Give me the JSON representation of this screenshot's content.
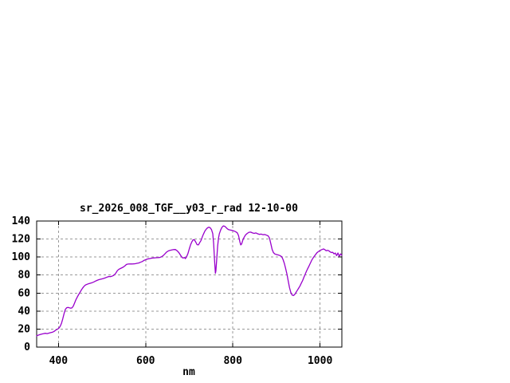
{
  "window": {
    "background": "#ffffff"
  },
  "chart_data": {
    "type": "line",
    "title": "sr_2026_008_TGF__y03_r_rad 12-10-00",
    "xlabel": "nm",
    "ylabel": "",
    "x_range": [
      350,
      1050
    ],
    "y_range": [
      0,
      140
    ],
    "x_ticks": [
      400,
      600,
      800,
      1000
    ],
    "y_ticks": [
      0,
      20,
      40,
      60,
      80,
      100,
      120,
      140
    ],
    "grid": true,
    "legend": "none",
    "line_color": "#9900cc",
    "grid_color": "#999999",
    "border_color": "#000000",
    "text_color": "#000000",
    "series": [
      {
        "name": "sr_2026_008_TGF__y03_r_rad",
        "points": [
          [
            350,
            12.5
          ],
          [
            355,
            13.5
          ],
          [
            358,
            14
          ],
          [
            362,
            14.5
          ],
          [
            366,
            15
          ],
          [
            370,
            15.3
          ],
          [
            374,
            15
          ],
          [
            378,
            15.5
          ],
          [
            382,
            16
          ],
          [
            386,
            16.5
          ],
          [
            390,
            17.5
          ],
          [
            394,
            19
          ],
          [
            398,
            20
          ],
          [
            401,
            21
          ],
          [
            404,
            23
          ],
          [
            407,
            26.5
          ],
          [
            410,
            31.5
          ],
          [
            413,
            37.5
          ],
          [
            416,
            42
          ],
          [
            419,
            43.8
          ],
          [
            422,
            44
          ],
          [
            425,
            43.6
          ],
          [
            428,
            43.2
          ],
          [
            431,
            43.5
          ],
          [
            434,
            45.5
          ],
          [
            437,
            49
          ],
          [
            440,
            52.5
          ],
          [
            443,
            55.5
          ],
          [
            446,
            58
          ],
          [
            449,
            60.5
          ],
          [
            452,
            63
          ],
          [
            455,
            65.3
          ],
          [
            458,
            67.2
          ],
          [
            461,
            68.6
          ],
          [
            464,
            69.5
          ],
          [
            468,
            70.2
          ],
          [
            472,
            70.8
          ],
          [
            476,
            71.3
          ],
          [
            480,
            72
          ],
          [
            484,
            73
          ],
          [
            488,
            74
          ],
          [
            492,
            74.8
          ],
          [
            496,
            75.3
          ],
          [
            500,
            75.8
          ],
          [
            504,
            76.3
          ],
          [
            508,
            77
          ],
          [
            512,
            77.8
          ],
          [
            516,
            78.4
          ],
          [
            519,
            78.2
          ],
          [
            522,
            78.6
          ],
          [
            526,
            79.5
          ],
          [
            529,
            80.5
          ],
          [
            532,
            82.5
          ],
          [
            535,
            84.8
          ],
          [
            538,
            86.2
          ],
          [
            542,
            87.3
          ],
          [
            546,
            88.2
          ],
          [
            550,
            89.2
          ],
          [
            553,
            90.5
          ],
          [
            556,
            91.8
          ],
          [
            560,
            92.2
          ],
          [
            564,
            92.3
          ],
          [
            568,
            92.3
          ],
          [
            572,
            92.4
          ],
          [
            576,
            92.6
          ],
          [
            580,
            93
          ],
          [
            584,
            93.4
          ],
          [
            588,
            94.2
          ],
          [
            592,
            95
          ],
          [
            596,
            96.2
          ],
          [
            600,
            97
          ],
          [
            604,
            97.8
          ],
          [
            608,
            98.2
          ],
          [
            612,
            98.6
          ],
          [
            616,
            98.9
          ],
          [
            620,
            99.1
          ],
          [
            624,
            99.2
          ],
          [
            628,
            99.3
          ],
          [
            632,
            99.5
          ],
          [
            636,
            100.2
          ],
          [
            640,
            101.5
          ],
          [
            644,
            103.5
          ],
          [
            648,
            105.5
          ],
          [
            652,
            106.8
          ],
          [
            656,
            107.4
          ],
          [
            660,
            107.8
          ],
          [
            664,
            108.3
          ],
          [
            668,
            108.4
          ],
          [
            672,
            107
          ],
          [
            676,
            105
          ],
          [
            680,
            102
          ],
          [
            683,
            99.8
          ],
          [
            686,
            98.9
          ],
          [
            689,
            99.5
          ],
          [
            691,
            98.3
          ],
          [
            694,
            100.5
          ],
          [
            697,
            104
          ],
          [
            700,
            109
          ],
          [
            703,
            113.5
          ],
          [
            706,
            117
          ],
          [
            709,
            119.3
          ],
          [
            712,
            119
          ],
          [
            715,
            116.5
          ],
          [
            718,
            113.8
          ],
          [
            721,
            113.5
          ],
          [
            724,
            116
          ],
          [
            727,
            118.5
          ],
          [
            730,
            122.5
          ],
          [
            733,
            126
          ],
          [
            736,
            129
          ],
          [
            739,
            131
          ],
          [
            742,
            132.5
          ],
          [
            745,
            133.2
          ],
          [
            748,
            132.5
          ],
          [
            751,
            130.5
          ],
          [
            754,
            126
          ],
          [
            756,
            115
          ],
          [
            758,
            97
          ],
          [
            760,
            82
          ],
          [
            761,
            84.5
          ],
          [
            763,
            98
          ],
          [
            765,
            112
          ],
          [
            767,
            121
          ],
          [
            769,
            126
          ],
          [
            772,
            130
          ],
          [
            775,
            133
          ],
          [
            778,
            134.5
          ],
          [
            781,
            134.2
          ],
          [
            784,
            133
          ],
          [
            787,
            131.5
          ],
          [
            790,
            130.5
          ],
          [
            794,
            130
          ],
          [
            798,
            129.6
          ],
          [
            802,
            129
          ],
          [
            806,
            128.2
          ],
          [
            810,
            127
          ],
          [
            813,
            124
          ],
          [
            816,
            117
          ],
          [
            818,
            113.5
          ],
          [
            820,
            114.5
          ],
          [
            823,
            119
          ],
          [
            826,
            122
          ],
          [
            829,
            124.5
          ],
          [
            833,
            126.3
          ],
          [
            837,
            127.5
          ],
          [
            841,
            127.7
          ],
          [
            845,
            126.8
          ],
          [
            849,
            126.3
          ],
          [
            853,
            126.8
          ],
          [
            857,
            125.8
          ],
          [
            861,
            125.2
          ],
          [
            865,
            125.5
          ],
          [
            869,
            124.8
          ],
          [
            873,
            125
          ],
          [
            877,
            124.3
          ],
          [
            881,
            123.5
          ],
          [
            884,
            121
          ],
          [
            887,
            115
          ],
          [
            890,
            108.5
          ],
          [
            893,
            105
          ],
          [
            896,
            103.5
          ],
          [
            900,
            102.8
          ],
          [
            904,
            102.3
          ],
          [
            908,
            101.6
          ],
          [
            912,
            100.4
          ],
          [
            915,
            97.5
          ],
          [
            918,
            93
          ],
          [
            921,
            87.5
          ],
          [
            924,
            81
          ],
          [
            927,
            73.5
          ],
          [
            930,
            66
          ],
          [
            933,
            60.5
          ],
          [
            936,
            57.8
          ],
          [
            939,
            57.2
          ],
          [
            942,
            58.5
          ],
          [
            945,
            61
          ],
          [
            948,
            63.2
          ],
          [
            951,
            65.5
          ],
          [
            954,
            68
          ],
          [
            957,
            71
          ],
          [
            960,
            74
          ],
          [
            963,
            77.5
          ],
          [
            966,
            81
          ],
          [
            969,
            84.5
          ],
          [
            972,
            87.5
          ],
          [
            975,
            90.5
          ],
          [
            978,
            93.5
          ],
          [
            981,
            96.5
          ],
          [
            984,
            99
          ],
          [
            987,
            101
          ],
          [
            990,
            103
          ],
          [
            993,
            104.8
          ],
          [
            996,
            106
          ],
          [
            1000,
            107.3
          ],
          [
            1004,
            108.3
          ],
          [
            1008,
            109
          ],
          [
            1011,
            108.2
          ],
          [
            1014,
            107
          ],
          [
            1017,
            107.5
          ],
          [
            1020,
            107
          ],
          [
            1023,
            105.8
          ],
          [
            1026,
            105
          ],
          [
            1029,
            105.3
          ],
          [
            1032,
            103.5
          ],
          [
            1035,
            104.5
          ],
          [
            1038,
            101.5
          ],
          [
            1041,
            104.5
          ],
          [
            1044,
            100.8
          ],
          [
            1047,
            103.5
          ],
          [
            1050,
            102
          ]
        ]
      }
    ]
  }
}
